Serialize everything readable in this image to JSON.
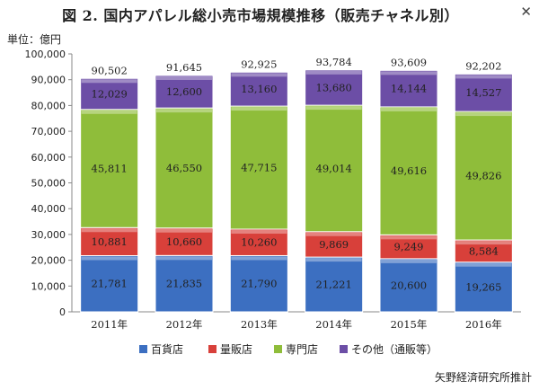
{
  "header": {
    "title": "図 2. 国内アパレル総小売市場規模推移（販売チャネル別）",
    "close_icon": "close-icon"
  },
  "unit_label": "単位：億円",
  "source": "矢野経済研究所推計",
  "colors": {
    "百貨店": "#3c6fc1",
    "量販店": "#d8403a",
    "専門店": "#8fbd3a",
    "その他（通販等）": "#6c4ea6"
  },
  "chart_data": {
    "type": "bar",
    "stacked": true,
    "title": "図 2. 国内アパレル総小売市場規模推移（販売チャネル別）",
    "ylabel": "単位：億円",
    "xlabel": "",
    "ylim": [
      0,
      100000
    ],
    "yticks": [
      "0",
      "10,000",
      "20,000",
      "30,000",
      "40,000",
      "50,000",
      "60,000",
      "70,000",
      "80,000",
      "90,000",
      "100,000"
    ],
    "categories": [
      "2011年",
      "2012年",
      "2013年",
      "2014年",
      "2015年",
      "2016年"
    ],
    "series": [
      {
        "name": "百貨店",
        "values": [
          21781,
          21835,
          21790,
          21221,
          20600,
          19265
        ],
        "labels": [
          "21,781",
          "21,835",
          "21,790",
          "21,221",
          "20,600",
          "19,265"
        ]
      },
      {
        "name": "量販店",
        "values": [
          10881,
          10660,
          10260,
          9869,
          9249,
          8584
        ],
        "labels": [
          "10,881",
          "10,660",
          "10,260",
          "9,869",
          "9,249",
          "8,584"
        ]
      },
      {
        "name": "専門店",
        "values": [
          45811,
          46550,
          47715,
          49014,
          49616,
          49826
        ],
        "labels": [
          "45,811",
          "46,550",
          "47,715",
          "49,014",
          "49,616",
          "49,826"
        ]
      },
      {
        "name": "その他（通販等）",
        "values": [
          12029,
          12600,
          13160,
          13680,
          14144,
          14527
        ],
        "labels": [
          "12,029",
          "12,600",
          "13,160",
          "13,680",
          "14,144",
          "14,527"
        ]
      }
    ],
    "totals": [
      90502,
      91645,
      92925,
      93784,
      93609,
      92202
    ],
    "total_labels": [
      "90,502",
      "91,645",
      "92,925",
      "93,784",
      "93,609",
      "92,202"
    ],
    "legend_position": "bottom",
    "grid": false
  }
}
